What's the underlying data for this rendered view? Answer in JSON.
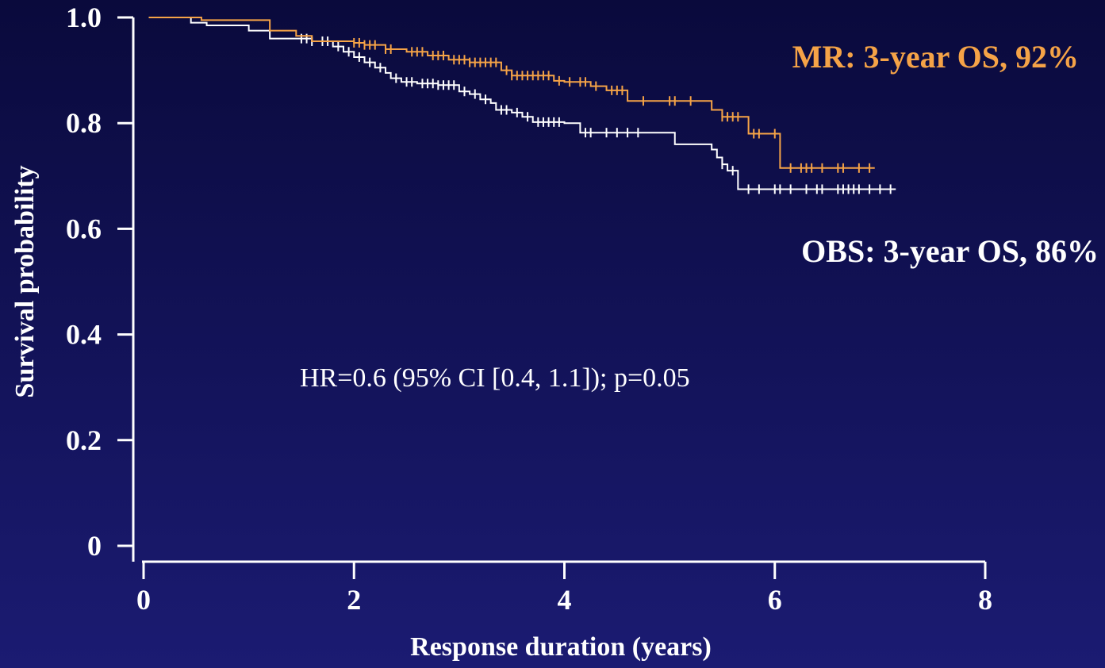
{
  "chart_data": {
    "type": "line",
    "subtype": "kaplan-meier",
    "title": "",
    "xlabel": "Response duration (years)",
    "ylabel": "Survival probability",
    "xlim": [
      0,
      8
    ],
    "ylim": [
      0,
      1.0
    ],
    "x_ticks": [
      0,
      2,
      4,
      6,
      8
    ],
    "x_tick_labels": [
      "0",
      "2",
      "4",
      "6",
      "8"
    ],
    "y_ticks": [
      0,
      0.2,
      0.4,
      0.6,
      0.8,
      1.0
    ],
    "y_tick_labels": [
      "0",
      "0.2",
      "0.4",
      "0.6",
      "0.8",
      "1.0"
    ],
    "grid": false,
    "series": [
      {
        "color": "#f5a347",
        "steps": [
          [
            0.05,
            1.0
          ],
          [
            0.5,
            1.0
          ],
          [
            0.55,
            0.995
          ],
          [
            1.1,
            0.995
          ],
          [
            1.2,
            0.975
          ],
          [
            1.45,
            0.965
          ],
          [
            1.6,
            0.955
          ],
          [
            2.0,
            0.952
          ],
          [
            2.1,
            0.948
          ],
          [
            2.3,
            0.94
          ],
          [
            2.5,
            0.935
          ],
          [
            2.7,
            0.928
          ],
          [
            2.9,
            0.92
          ],
          [
            3.1,
            0.915
          ],
          [
            3.4,
            0.9
          ],
          [
            3.5,
            0.89
          ],
          [
            3.9,
            0.88
          ],
          [
            4.0,
            0.878
          ],
          [
            4.25,
            0.87
          ],
          [
            4.4,
            0.862
          ],
          [
            4.6,
            0.842
          ],
          [
            5.4,
            0.825
          ],
          [
            5.5,
            0.812
          ],
          [
            5.75,
            0.78
          ],
          [
            6.05,
            0.715
          ],
          [
            6.95,
            0.715
          ]
        ],
        "censors": [
          2.0,
          2.05,
          2.1,
          2.15,
          2.2,
          2.3,
          2.35,
          2.55,
          2.6,
          2.65,
          2.75,
          2.8,
          2.85,
          2.95,
          3.0,
          3.05,
          3.1,
          3.15,
          3.2,
          3.25,
          3.3,
          3.35,
          3.45,
          3.5,
          3.55,
          3.6,
          3.65,
          3.7,
          3.75,
          3.8,
          3.85,
          3.95,
          4.05,
          4.15,
          4.2,
          4.3,
          4.45,
          4.5,
          4.55,
          4.75,
          5.0,
          5.05,
          5.2,
          5.5,
          5.55,
          5.6,
          5.65,
          5.8,
          5.85,
          6.0,
          6.15,
          6.25,
          6.3,
          6.35,
          6.45,
          6.6,
          6.65,
          6.8,
          6.9
        ],
        "label_text": "MR: 3-year OS, 92%"
      },
      {
        "color": "#ffffff",
        "steps": [
          [
            0.05,
            1.0
          ],
          [
            0.4,
            1.0
          ],
          [
            0.45,
            0.99
          ],
          [
            0.6,
            0.985
          ],
          [
            1.0,
            0.975
          ],
          [
            1.2,
            0.96
          ],
          [
            1.6,
            0.955
          ],
          [
            1.8,
            0.945
          ],
          [
            1.9,
            0.935
          ],
          [
            2.0,
            0.925
          ],
          [
            2.1,
            0.915
          ],
          [
            2.2,
            0.905
          ],
          [
            2.3,
            0.895
          ],
          [
            2.35,
            0.885
          ],
          [
            2.45,
            0.878
          ],
          [
            2.6,
            0.875
          ],
          [
            2.8,
            0.872
          ],
          [
            3.0,
            0.86
          ],
          [
            3.1,
            0.855
          ],
          [
            3.2,
            0.845
          ],
          [
            3.3,
            0.838
          ],
          [
            3.35,
            0.825
          ],
          [
            3.5,
            0.82
          ],
          [
            3.6,
            0.812
          ],
          [
            3.7,
            0.802
          ],
          [
            4.0,
            0.8
          ],
          [
            4.15,
            0.782
          ],
          [
            5.05,
            0.76
          ],
          [
            5.4,
            0.75
          ],
          [
            5.45,
            0.735
          ],
          [
            5.5,
            0.722
          ],
          [
            5.55,
            0.71
          ],
          [
            5.65,
            0.675
          ],
          [
            7.15,
            0.675
          ]
        ],
        "censors": [
          1.5,
          1.55,
          1.6,
          1.7,
          1.75,
          1.85,
          1.95,
          2.05,
          2.15,
          2.25,
          2.4,
          2.5,
          2.55,
          2.65,
          2.7,
          2.75,
          2.8,
          2.85,
          2.9,
          2.95,
          3.05,
          3.15,
          3.25,
          3.4,
          3.45,
          3.55,
          3.65,
          3.75,
          3.8,
          3.85,
          3.9,
          3.95,
          4.2,
          4.25,
          4.4,
          4.5,
          4.6,
          4.7,
          5.5,
          5.6,
          5.75,
          5.85,
          6.0,
          6.05,
          6.15,
          6.3,
          6.4,
          6.45,
          6.6,
          6.65,
          6.7,
          6.75,
          6.8,
          6.9,
          7.0,
          7.1
        ],
        "label_text": "OBS: 3-year OS, 86%"
      }
    ],
    "annotation": "HR=0.6 (95% CI [0.4, 1.1]); p=0.05"
  }
}
